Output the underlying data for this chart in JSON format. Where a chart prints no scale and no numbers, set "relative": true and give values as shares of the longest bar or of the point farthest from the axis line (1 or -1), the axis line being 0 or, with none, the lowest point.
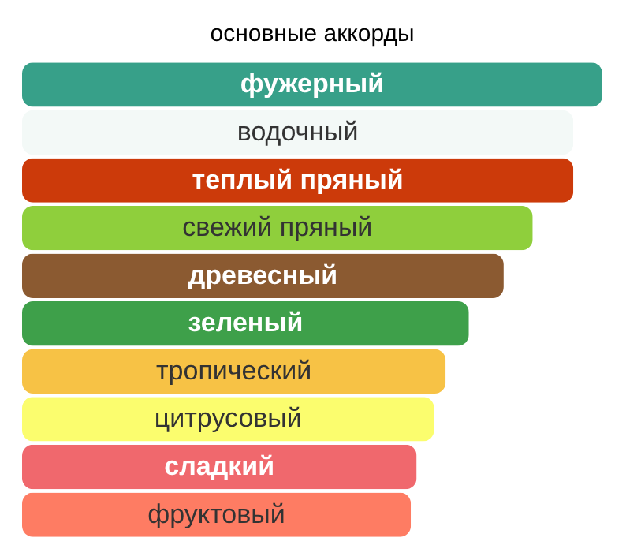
{
  "chart_data": {
    "type": "bar",
    "orientation": "horizontal",
    "relative": true,
    "title": "основные аккорды",
    "categories": [
      "фужерный",
      "водочный",
      "теплый пряный",
      "свежий пряный",
      "древесный",
      "зеленый",
      "тропический",
      "цитрусовый",
      "сладкий",
      "фруктовый"
    ],
    "values": [
      1,
      0.95,
      0.95,
      0.88,
      0.83,
      0.77,
      0.73,
      0.71,
      0.68,
      0.67
    ],
    "colors": [
      "#37a089",
      "#f3f9f7",
      "#cc3a0a",
      "#8fcf3c",
      "#8b5a31",
      "#3ea04a",
      "#f7c245",
      "#fbfd6e",
      "#f0686d",
      "#fe7c63"
    ]
  }
}
